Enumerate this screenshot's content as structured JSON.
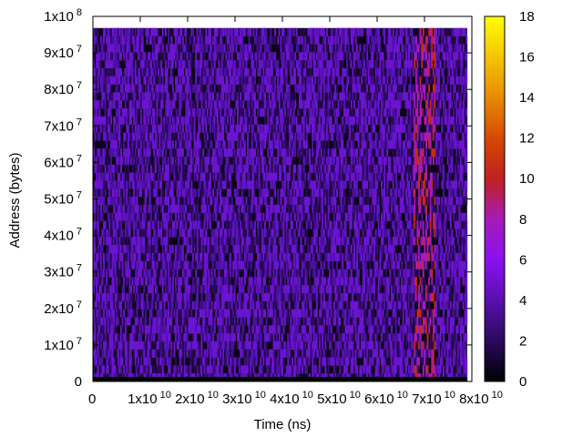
{
  "chart_data": {
    "type": "heatmap",
    "title": "",
    "xlabel": "Time (ns)",
    "ylabel": "Address (bytes)",
    "xlim": [
      0,
      80000000000
    ],
    "ylim": [
      0,
      100000000
    ],
    "x_tick_labels": [
      {
        "value": 0,
        "mantissa": "0",
        "exp": ""
      },
      {
        "value": 10000000000,
        "mantissa": "1x10",
        "exp": "10"
      },
      {
        "value": 20000000000,
        "mantissa": "2x10",
        "exp": "10"
      },
      {
        "value": 30000000000,
        "mantissa": "3x10",
        "exp": "10"
      },
      {
        "value": 40000000000,
        "mantissa": "4x10",
        "exp": "10"
      },
      {
        "value": 50000000000,
        "mantissa": "5x10",
        "exp": "10"
      },
      {
        "value": 60000000000,
        "mantissa": "6x10",
        "exp": "10"
      },
      {
        "value": 70000000000,
        "mantissa": "7x10",
        "exp": "10"
      },
      {
        "value": 80000000000,
        "mantissa": "8x10",
        "exp": "10"
      }
    ],
    "y_tick_labels": [
      {
        "value": 0,
        "mantissa": "0",
        "exp": ""
      },
      {
        "value": 10000000,
        "mantissa": "1x10",
        "exp": "7"
      },
      {
        "value": 20000000,
        "mantissa": "2x10",
        "exp": "7"
      },
      {
        "value": 30000000,
        "mantissa": "3x10",
        "exp": "7"
      },
      {
        "value": 40000000,
        "mantissa": "4x10",
        "exp": "7"
      },
      {
        "value": 50000000,
        "mantissa": "5x10",
        "exp": "7"
      },
      {
        "value": 60000000,
        "mantissa": "6x10",
        "exp": "7"
      },
      {
        "value": 70000000,
        "mantissa": "7x10",
        "exp": "7"
      },
      {
        "value": 80000000,
        "mantissa": "8x10",
        "exp": "7"
      },
      {
        "value": 90000000,
        "mantissa": "9x10",
        "exp": "7"
      },
      {
        "value": 100000000,
        "mantissa": "1x10",
        "exp": "8"
      }
    ],
    "colorbar": {
      "range": [
        0,
        18
      ],
      "ticks": [
        0,
        2,
        4,
        6,
        8,
        10,
        12,
        14,
        16,
        18
      ],
      "palette": [
        "#000000",
        "#2a0a5c",
        "#5a10b0",
        "#8a10f0",
        "#a81ab8",
        "#c02020",
        "#d64a00",
        "#e88a00",
        "#f4c400",
        "#ffff00"
      ]
    },
    "data_extent": {
      "x_max": 79000000000,
      "y_max": 96800000
    },
    "grid": false,
    "legend": "colorbar-right"
  }
}
